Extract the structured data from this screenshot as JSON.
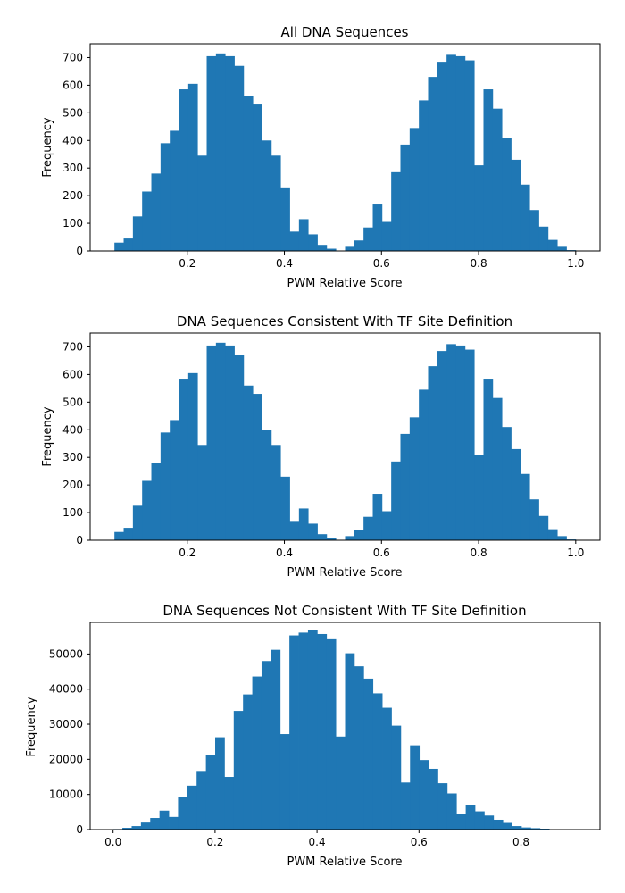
{
  "colors": {
    "bar": "#1f77b4",
    "axis": "#000000",
    "background": "#ffffff"
  },
  "chart_data": [
    {
      "type": "bar",
      "title": "All DNA Sequences",
      "xlabel": "PWM Relative Score",
      "ylabel": "Frequency",
      "xlim": [
        0.0,
        1.05
      ],
      "ylim": [
        0,
        750
      ],
      "xticks": [
        0.2,
        0.4,
        0.6,
        0.8,
        1.0
      ],
      "xtick_labels": [
        "0.2",
        "0.4",
        "0.6",
        "0.8",
        "1.0"
      ],
      "yticks": [
        0,
        100,
        200,
        300,
        400,
        500,
        600,
        700
      ],
      "ytick_labels": [
        "0",
        "100",
        "200",
        "300",
        "400",
        "500",
        "600",
        "700"
      ],
      "grid": false,
      "bin_edges": [
        0.05,
        0.069,
        0.088,
        0.107,
        0.126,
        0.145,
        0.164,
        0.183,
        0.202,
        0.221,
        0.24,
        0.259,
        0.278,
        0.297,
        0.316,
        0.335,
        0.354,
        0.373,
        0.392,
        0.411,
        0.43,
        0.449,
        0.468,
        0.487,
        0.506,
        0.525,
        0.544,
        0.563,
        0.582,
        0.601,
        0.62,
        0.639,
        0.658,
        0.677,
        0.696,
        0.715,
        0.734,
        0.753,
        0.772,
        0.791,
        0.81,
        0.829,
        0.848,
        0.867,
        0.886,
        0.905,
        0.924,
        0.943,
        0.962,
        0.981,
        1.0
      ],
      "values": [
        30,
        45,
        125,
        215,
        280,
        390,
        435,
        585,
        605,
        345,
        705,
        715,
        705,
        670,
        560,
        530,
        400,
        345,
        230,
        70,
        115,
        60,
        22,
        8,
        0,
        15,
        38,
        85,
        168,
        105,
        285,
        385,
        445,
        545,
        630,
        685,
        710,
        705,
        690,
        310,
        585,
        515,
        410,
        330,
        240,
        148,
        88,
        40,
        15,
        3
      ]
    },
    {
      "type": "bar",
      "title": "DNA Sequences Consistent With TF Site Definition",
      "xlabel": "PWM Relative Score",
      "ylabel": "Frequency",
      "xlim": [
        0.0,
        1.05
      ],
      "ylim": [
        0,
        750
      ],
      "xticks": [
        0.2,
        0.4,
        0.6,
        0.8,
        1.0
      ],
      "xtick_labels": [
        "0.2",
        "0.4",
        "0.6",
        "0.8",
        "1.0"
      ],
      "yticks": [
        0,
        100,
        200,
        300,
        400,
        500,
        600,
        700
      ],
      "ytick_labels": [
        "0",
        "100",
        "200",
        "300",
        "400",
        "500",
        "600",
        "700"
      ],
      "grid": false,
      "bin_edges": [
        0.05,
        0.069,
        0.088,
        0.107,
        0.126,
        0.145,
        0.164,
        0.183,
        0.202,
        0.221,
        0.24,
        0.259,
        0.278,
        0.297,
        0.316,
        0.335,
        0.354,
        0.373,
        0.392,
        0.411,
        0.43,
        0.449,
        0.468,
        0.487,
        0.506,
        0.525,
        0.544,
        0.563,
        0.582,
        0.601,
        0.62,
        0.639,
        0.658,
        0.677,
        0.696,
        0.715,
        0.734,
        0.753,
        0.772,
        0.791,
        0.81,
        0.829,
        0.848,
        0.867,
        0.886,
        0.905,
        0.924,
        0.943,
        0.962,
        0.981,
        1.0
      ],
      "values": [
        30,
        45,
        125,
        215,
        280,
        390,
        435,
        585,
        605,
        345,
        705,
        715,
        705,
        670,
        560,
        530,
        400,
        345,
        230,
        70,
        115,
        60,
        22,
        8,
        0,
        15,
        38,
        85,
        168,
        105,
        285,
        385,
        445,
        545,
        630,
        685,
        710,
        705,
        690,
        310,
        585,
        515,
        410,
        330,
        240,
        148,
        88,
        40,
        15,
        3
      ]
    },
    {
      "type": "bar",
      "title": "DNA Sequences Not Consistent With TF Site Definition",
      "xlabel": "PWM Relative Score",
      "ylabel": "Frequency",
      "xlim": [
        -0.045,
        0.955
      ],
      "ylim": [
        0,
        59000
      ],
      "xticks": [
        0.0,
        0.2,
        0.4,
        0.6,
        0.8
      ],
      "xtick_labels": [
        "0.0",
        "0.2",
        "0.4",
        "0.6",
        "0.8"
      ],
      "yticks": [
        0,
        10000,
        20000,
        30000,
        40000,
        50000
      ],
      "ytick_labels": [
        "0",
        "10000",
        "20000",
        "30000",
        "40000",
        "50000"
      ],
      "grid": false,
      "bin_edges": [
        0.0,
        0.0182,
        0.0364,
        0.0546,
        0.0728,
        0.091,
        0.1092,
        0.1274,
        0.1456,
        0.1638,
        0.182,
        0.2002,
        0.2184,
        0.2366,
        0.2548,
        0.273,
        0.2912,
        0.3094,
        0.3276,
        0.3458,
        0.364,
        0.3822,
        0.4004,
        0.4186,
        0.4368,
        0.455,
        0.4732,
        0.4914,
        0.5096,
        0.5278,
        0.546,
        0.5642,
        0.5824,
        0.6006,
        0.6188,
        0.637,
        0.6552,
        0.6734,
        0.6916,
        0.7098,
        0.728,
        0.7462,
        0.7644,
        0.7826,
        0.8008,
        0.819,
        0.8372,
        0.8554,
        0.8736,
        0.8918,
        0.91
      ],
      "values": [
        150,
        500,
        1000,
        2000,
        3300,
        5400,
        3600,
        9300,
        12500,
        16700,
        21200,
        26300,
        15000,
        33800,
        38500,
        43600,
        48000,
        51200,
        27200,
        55300,
        56100,
        56800,
        55700,
        54200,
        26500,
        50200,
        46500,
        43000,
        38800,
        34700,
        29600,
        13400,
        24000,
        19800,
        17300,
        13200,
        10300,
        4500,
        6900,
        5200,
        4000,
        2800,
        1900,
        1000,
        600,
        400,
        250,
        120,
        60,
        20
      ]
    }
  ]
}
